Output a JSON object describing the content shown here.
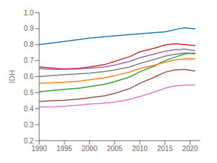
{
  "chart_data": {
    "type": "line",
    "ylabel": "IDH",
    "xlim": [
      1990,
      2022
    ],
    "ylim": [
      0.2,
      1.0
    ],
    "xticks": [
      1990,
      1995,
      2000,
      2005,
      2010,
      2015,
      2020
    ],
    "yticks": [
      0.2,
      0.3,
      0.4,
      0.5,
      0.6,
      0.7,
      0.8,
      0.9,
      {
        "value": 1.0,
        "label": "1.0"
      }
    ],
    "grid": false,
    "series": [
      {
        "color": "#1f77b4",
        "x": [
          1990,
          1995,
          2000,
          2005,
          2010,
          2015,
          2018,
          2019,
          2021
        ],
        "values": [
          0.8,
          0.82,
          0.84,
          0.855,
          0.868,
          0.88,
          0.9,
          0.905,
          0.898
        ]
      },
      {
        "color": "#d62728",
        "x": [
          1990,
          1993,
          1995,
          1998,
          2000,
          2003,
          2005,
          2008,
          2010,
          2013,
          2015,
          2017,
          2019,
          2021
        ],
        "values": [
          0.66,
          0.652,
          0.648,
          0.652,
          0.66,
          0.675,
          0.695,
          0.725,
          0.755,
          0.778,
          0.798,
          0.805,
          0.8,
          0.793
        ]
      },
      {
        "color": "#9467bd",
        "x": [
          1990,
          1993,
          1995,
          1998,
          2000,
          2003,
          2005,
          2008,
          2010,
          2013,
          2015,
          2017,
          2019,
          2021
        ],
        "values": [
          0.65,
          0.645,
          0.645,
          0.648,
          0.652,
          0.66,
          0.672,
          0.695,
          0.718,
          0.742,
          0.758,
          0.768,
          0.772,
          0.762
        ]
      },
      {
        "color": "#7f7f7f",
        "x": [
          1990,
          1993,
          1995,
          1998,
          2000,
          2003,
          2005,
          2008,
          2010,
          2013,
          2015,
          2017,
          2019,
          2021
        ],
        "values": [
          0.6,
          0.608,
          0.612,
          0.618,
          0.622,
          0.632,
          0.642,
          0.66,
          0.682,
          0.708,
          0.728,
          0.74,
          0.748,
          0.742
        ]
      },
      {
        "color": "#2ca02c",
        "x": [
          1990,
          1993,
          1995,
          1998,
          2000,
          2003,
          2005,
          2008,
          2010,
          2013,
          2015,
          2017,
          2019,
          2021
        ],
        "values": [
          0.505,
          0.515,
          0.52,
          0.528,
          0.538,
          0.552,
          0.568,
          0.598,
          0.63,
          0.668,
          0.7,
          0.722,
          0.742,
          0.748
        ]
      },
      {
        "color": "#ff7f0e",
        "x": [
          1990,
          1993,
          1995,
          1998,
          2000,
          2003,
          2005,
          2008,
          2010,
          2013,
          2015,
          2017,
          2019,
          2021
        ],
        "values": [
          0.558,
          0.562,
          0.565,
          0.572,
          0.58,
          0.592,
          0.605,
          0.628,
          0.65,
          0.672,
          0.69,
          0.705,
          0.712,
          0.71
        ]
      },
      {
        "color": "#8c564b",
        "x": [
          1990,
          1993,
          1995,
          1998,
          2000,
          2003,
          2005,
          2008,
          2010,
          2013,
          2015,
          2017,
          2019,
          2021
        ],
        "values": [
          0.445,
          0.45,
          0.452,
          0.46,
          0.468,
          0.48,
          0.495,
          0.525,
          0.558,
          0.598,
          0.628,
          0.642,
          0.645,
          0.635
        ]
      },
      {
        "color": "#e377c2",
        "x": [
          1990,
          1993,
          1995,
          1998,
          2000,
          2002,
          2005,
          2008,
          2010,
          2013,
          2015,
          2017,
          2019,
          2021
        ],
        "values": [
          0.41,
          0.412,
          0.415,
          0.422,
          0.428,
          0.432,
          0.44,
          0.458,
          0.475,
          0.505,
          0.528,
          0.542,
          0.548,
          0.548
        ]
      }
    ]
  }
}
